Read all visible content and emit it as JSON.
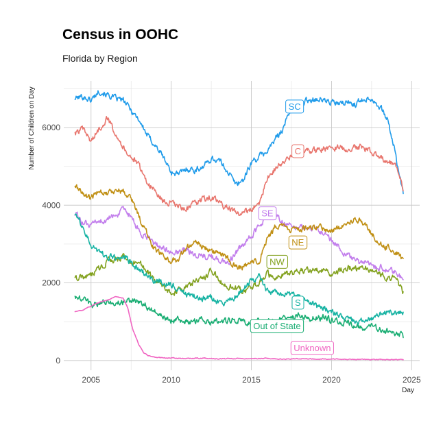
{
  "chart_data": {
    "type": "line",
    "title": "Census in OOHC",
    "subtitle": "Florida by Region",
    "xlabel": "Day",
    "ylabel": "Number of Children on Day",
    "xlim": [
      2003.3,
      2025.5
    ],
    "ylim": [
      -250,
      7200
    ],
    "x_ticks": [
      2005,
      2010,
      2015,
      2020,
      2025
    ],
    "y_ticks": [
      0,
      2000,
      4000,
      6000
    ],
    "x_tick_labels": [
      "2005",
      "2010",
      "2015",
      "2020",
      "2025"
    ],
    "y_tick_labels": [
      "0",
      "2000",
      "4000",
      "6000"
    ],
    "series": [
      {
        "name": "SC",
        "color": "#1f9bea",
        "label_x": 2017.7,
        "label_y": 6550,
        "x": [
          2004,
          2004.5,
          2005,
          2005.5,
          2006,
          2006.5,
          2007,
          2007.5,
          2008,
          2008.5,
          2009,
          2009.5,
          2010,
          2010.5,
          2011,
          2011.5,
          2012,
          2012.5,
          2013,
          2013.5,
          2014,
          2014.5,
          2015,
          2015.5,
          2016,
          2016.5,
          2017,
          2017.5,
          2018,
          2018.5,
          2019,
          2019.5,
          2020,
          2020.5,
          2021,
          2021.5,
          2022,
          2022.5,
          2023,
          2023.5,
          2024,
          2024.5
        ],
        "y": [
          6750,
          6800,
          6700,
          6950,
          6850,
          6750,
          6700,
          6450,
          6200,
          5800,
          5550,
          5250,
          4850,
          4800,
          4950,
          4900,
          5000,
          5200,
          5150,
          4900,
          4550,
          4650,
          5100,
          5250,
          5400,
          5700,
          6000,
          6500,
          6600,
          6700,
          6750,
          6700,
          6650,
          6600,
          6650,
          6600,
          6750,
          6750,
          6550,
          6200,
          5300,
          4200
        ]
      },
      {
        "name": "C",
        "color": "#e8756d",
        "label_x": 2017.9,
        "label_y": 5400,
        "x": [
          2004,
          2004.5,
          2005,
          2005.5,
          2006,
          2006.5,
          2007,
          2007.5,
          2008,
          2008.5,
          2009,
          2009.5,
          2010,
          2010.5,
          2011,
          2011.5,
          2012,
          2012.5,
          2013,
          2013.5,
          2014,
          2014.5,
          2015,
          2015.5,
          2016,
          2016.5,
          2017,
          2017.5,
          2018,
          2018.5,
          2019,
          2019.5,
          2020,
          2020.5,
          2021,
          2021.5,
          2022,
          2022.5,
          2023,
          2023.5,
          2024,
          2024.5
        ],
        "y": [
          5850,
          5950,
          5650,
          5950,
          6250,
          5900,
          5500,
          5250,
          5000,
          4600,
          4350,
          4100,
          4050,
          3950,
          3900,
          4050,
          4150,
          4200,
          4050,
          3950,
          3800,
          3800,
          3900,
          4050,
          4700,
          4950,
          5100,
          5250,
          5350,
          5400,
          5400,
          5450,
          5500,
          5480,
          5450,
          5480,
          5500,
          5350,
          5250,
          5150,
          5050,
          4350
        ]
      },
      {
        "name": "SE",
        "color": "#c27eec",
        "label_x": 2016.0,
        "label_y": 3800,
        "x": [
          2004,
          2004.5,
          2005,
          2005.5,
          2006,
          2006.5,
          2007,
          2007.5,
          2008,
          2008.5,
          2009,
          2009.5,
          2010,
          2010.5,
          2011,
          2011.5,
          2012,
          2012.5,
          2013,
          2013.5,
          2014,
          2014.5,
          2015,
          2015.5,
          2016,
          2016.5,
          2017,
          2017.5,
          2018,
          2018.5,
          2019,
          2019.5,
          2020,
          2020.5,
          2021,
          2021.5,
          2022,
          2022.5,
          2023,
          2023.5,
          2024,
          2024.5
        ],
        "y": [
          3800,
          3550,
          3450,
          3600,
          3600,
          3750,
          3850,
          3700,
          3300,
          3150,
          3000,
          2900,
          2750,
          2800,
          2850,
          2750,
          2700,
          2650,
          2600,
          2500,
          2750,
          2950,
          3200,
          3450,
          3750,
          3800,
          3550,
          3500,
          3450,
          3400,
          3400,
          3300,
          3100,
          2900,
          2700,
          2550,
          2500,
          2450,
          2400,
          2350,
          2250,
          2050
        ]
      },
      {
        "name": "NE",
        "color": "#c08f13",
        "label_x": 2017.9,
        "label_y": 3050,
        "x": [
          2004,
          2004.5,
          2005,
          2005.5,
          2006,
          2006.5,
          2007,
          2007.5,
          2008,
          2008.5,
          2009,
          2009.5,
          2010,
          2010.5,
          2011,
          2011.5,
          2012,
          2012.5,
          2013,
          2013.5,
          2014,
          2014.5,
          2015,
          2015.5,
          2016,
          2016.5,
          2017,
          2017.5,
          2018,
          2018.5,
          2019,
          2019.5,
          2020,
          2020.5,
          2021,
          2021.5,
          2022,
          2022.5,
          2023,
          2023.5,
          2024,
          2024.5
        ],
        "y": [
          4500,
          4300,
          4150,
          4400,
          4300,
          4400,
          4350,
          4200,
          3700,
          3250,
          2850,
          2700,
          2550,
          2650,
          2900,
          3050,
          2950,
          2850,
          2750,
          2650,
          2400,
          2400,
          2500,
          2600,
          3100,
          3450,
          3450,
          3350,
          3350,
          3450,
          3450,
          3400,
          3350,
          3450,
          3550,
          3650,
          3550,
          3300,
          3000,
          2900,
          2800,
          2550
        ]
      },
      {
        "name": "NW",
        "color": "#82a11e",
        "label_x": 2016.6,
        "label_y": 2550,
        "x": [
          2004,
          2004.5,
          2005,
          2005.5,
          2006,
          2006.5,
          2007,
          2007.5,
          2008,
          2008.5,
          2009,
          2009.5,
          2010,
          2010.5,
          2011,
          2011.5,
          2012,
          2012.5,
          2013,
          2013.5,
          2014,
          2014.5,
          2015,
          2015.5,
          2016,
          2016.5,
          2017,
          2017.5,
          2018,
          2018.5,
          2019,
          2019.5,
          2020,
          2020.5,
          2021,
          2021.5,
          2022,
          2022.5,
          2023,
          2023.5,
          2024,
          2024.5
        ],
        "y": [
          2100,
          2150,
          2200,
          2350,
          2550,
          2600,
          2650,
          2500,
          2550,
          2300,
          2050,
          1900,
          1750,
          1800,
          1900,
          2050,
          2100,
          2350,
          2050,
          1950,
          1850,
          1800,
          1850,
          2000,
          2250,
          2050,
          2250,
          2250,
          2300,
          2300,
          2300,
          2350,
          2250,
          2300,
          2400,
          2350,
          2350,
          2350,
          2250,
          2150,
          2100,
          1750
        ]
      },
      {
        "name": "S",
        "color": "#17b3a3",
        "label_x": 2017.9,
        "label_y": 1500,
        "x": [
          2004,
          2004.5,
          2005,
          2005.5,
          2006,
          2006.5,
          2007,
          2007.5,
          2008,
          2008.5,
          2009,
          2009.5,
          2010,
          2010.5,
          2011,
          2011.5,
          2012,
          2012.5,
          2013,
          2013.5,
          2014,
          2014.5,
          2015,
          2015.5,
          2016,
          2016.5,
          2017,
          2017.5,
          2018,
          2018.5,
          2019,
          2019.5,
          2020,
          2020.5,
          2021,
          2021.5,
          2022,
          2022.5,
          2023,
          2023.5,
          2024,
          2024.5
        ],
        "y": [
          3800,
          3450,
          3000,
          2800,
          2650,
          2650,
          2650,
          2550,
          2300,
          2200,
          2050,
          2000,
          1950,
          1850,
          1700,
          1650,
          1600,
          1650,
          1450,
          1500,
          1650,
          1850,
          2050,
          2150,
          1800,
          1750,
          1750,
          1700,
          1650,
          1500,
          1400,
          1350,
          1250,
          1150,
          1050,
          1000,
          1000,
          1100,
          1200,
          1250,
          1250,
          1200
        ]
      },
      {
        "name": "Out of State",
        "color": "#18ad72",
        "label_x": 2016.6,
        "label_y": 900,
        "x": [
          2004,
          2004.5,
          2005,
          2005.5,
          2006,
          2006.5,
          2007,
          2007.5,
          2008,
          2008.5,
          2009,
          2009.5,
          2010,
          2010.5,
          2011,
          2011.5,
          2012,
          2012.5,
          2013,
          2013.5,
          2014,
          2014.5,
          2015,
          2015.5,
          2016,
          2016.5,
          2017,
          2017.5,
          2018,
          2018.5,
          2019,
          2019.5,
          2020,
          2020.5,
          2021,
          2021.5,
          2022,
          2022.5,
          2023,
          2023.5,
          2024,
          2024.5
        ],
        "y": [
          1650,
          1550,
          1450,
          1450,
          1500,
          1500,
          1500,
          1550,
          1500,
          1400,
          1250,
          1100,
          1050,
          1050,
          1000,
          1000,
          1050,
          1000,
          1050,
          1000,
          1050,
          1000,
          1000,
          1000,
          1050,
          1050,
          1050,
          1100,
          1150,
          1100,
          1100,
          1100,
          1050,
          1000,
          950,
          900,
          850,
          850,
          800,
          750,
          700,
          620
        ]
      },
      {
        "name": "Unknown",
        "color": "#f065c2",
        "label_x": 2018.8,
        "label_y": 330,
        "x": [
          2004,
          2004.5,
          2005,
          2005.5,
          2006,
          2006.5,
          2007,
          2007.3,
          2007.6,
          2008,
          2008.3,
          2008.6,
          2009,
          2009.5,
          2010,
          2011,
          2012,
          2013,
          2014,
          2015,
          2016,
          2017,
          2018,
          2019,
          2020,
          2021,
          2022,
          2023,
          2024,
          2024.5
        ],
        "y": [
          1250,
          1300,
          1400,
          1500,
          1550,
          1650,
          1600,
          1350,
          800,
          400,
          200,
          120,
          90,
          70,
          60,
          55,
          60,
          45,
          50,
          55,
          55,
          40,
          45,
          40,
          35,
          35,
          30,
          25,
          25,
          25
        ]
      }
    ]
  }
}
